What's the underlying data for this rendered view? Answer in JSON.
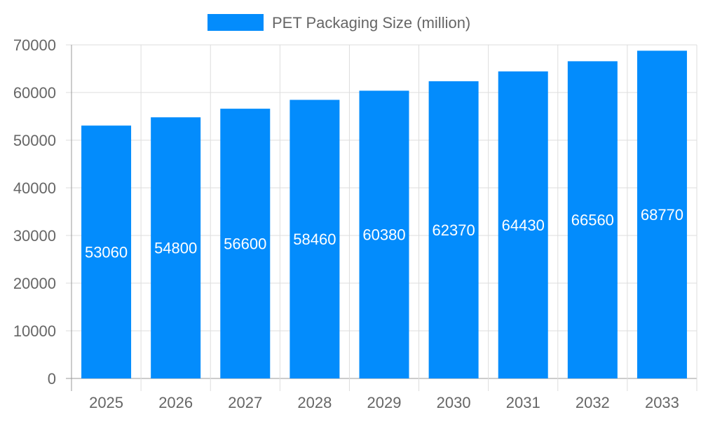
{
  "chart_data": {
    "type": "bar",
    "title": "",
    "xlabel": "",
    "ylabel": "",
    "categories": [
      "2025",
      "2026",
      "2027",
      "2028",
      "2029",
      "2030",
      "2031",
      "2032",
      "2033"
    ],
    "series": [
      {
        "name": "PET Packaging Size (million)",
        "values": [
          53060,
          54800,
          56600,
          58460,
          60380,
          62370,
          64430,
          66560,
          68770
        ],
        "color": "#038cfc"
      }
    ],
    "ylim": [
      0,
      70000
    ],
    "yticks": [
      0,
      10000,
      20000,
      30000,
      40000,
      50000,
      60000,
      70000
    ],
    "grid": true,
    "legend_position": "top",
    "data_labels": true
  }
}
